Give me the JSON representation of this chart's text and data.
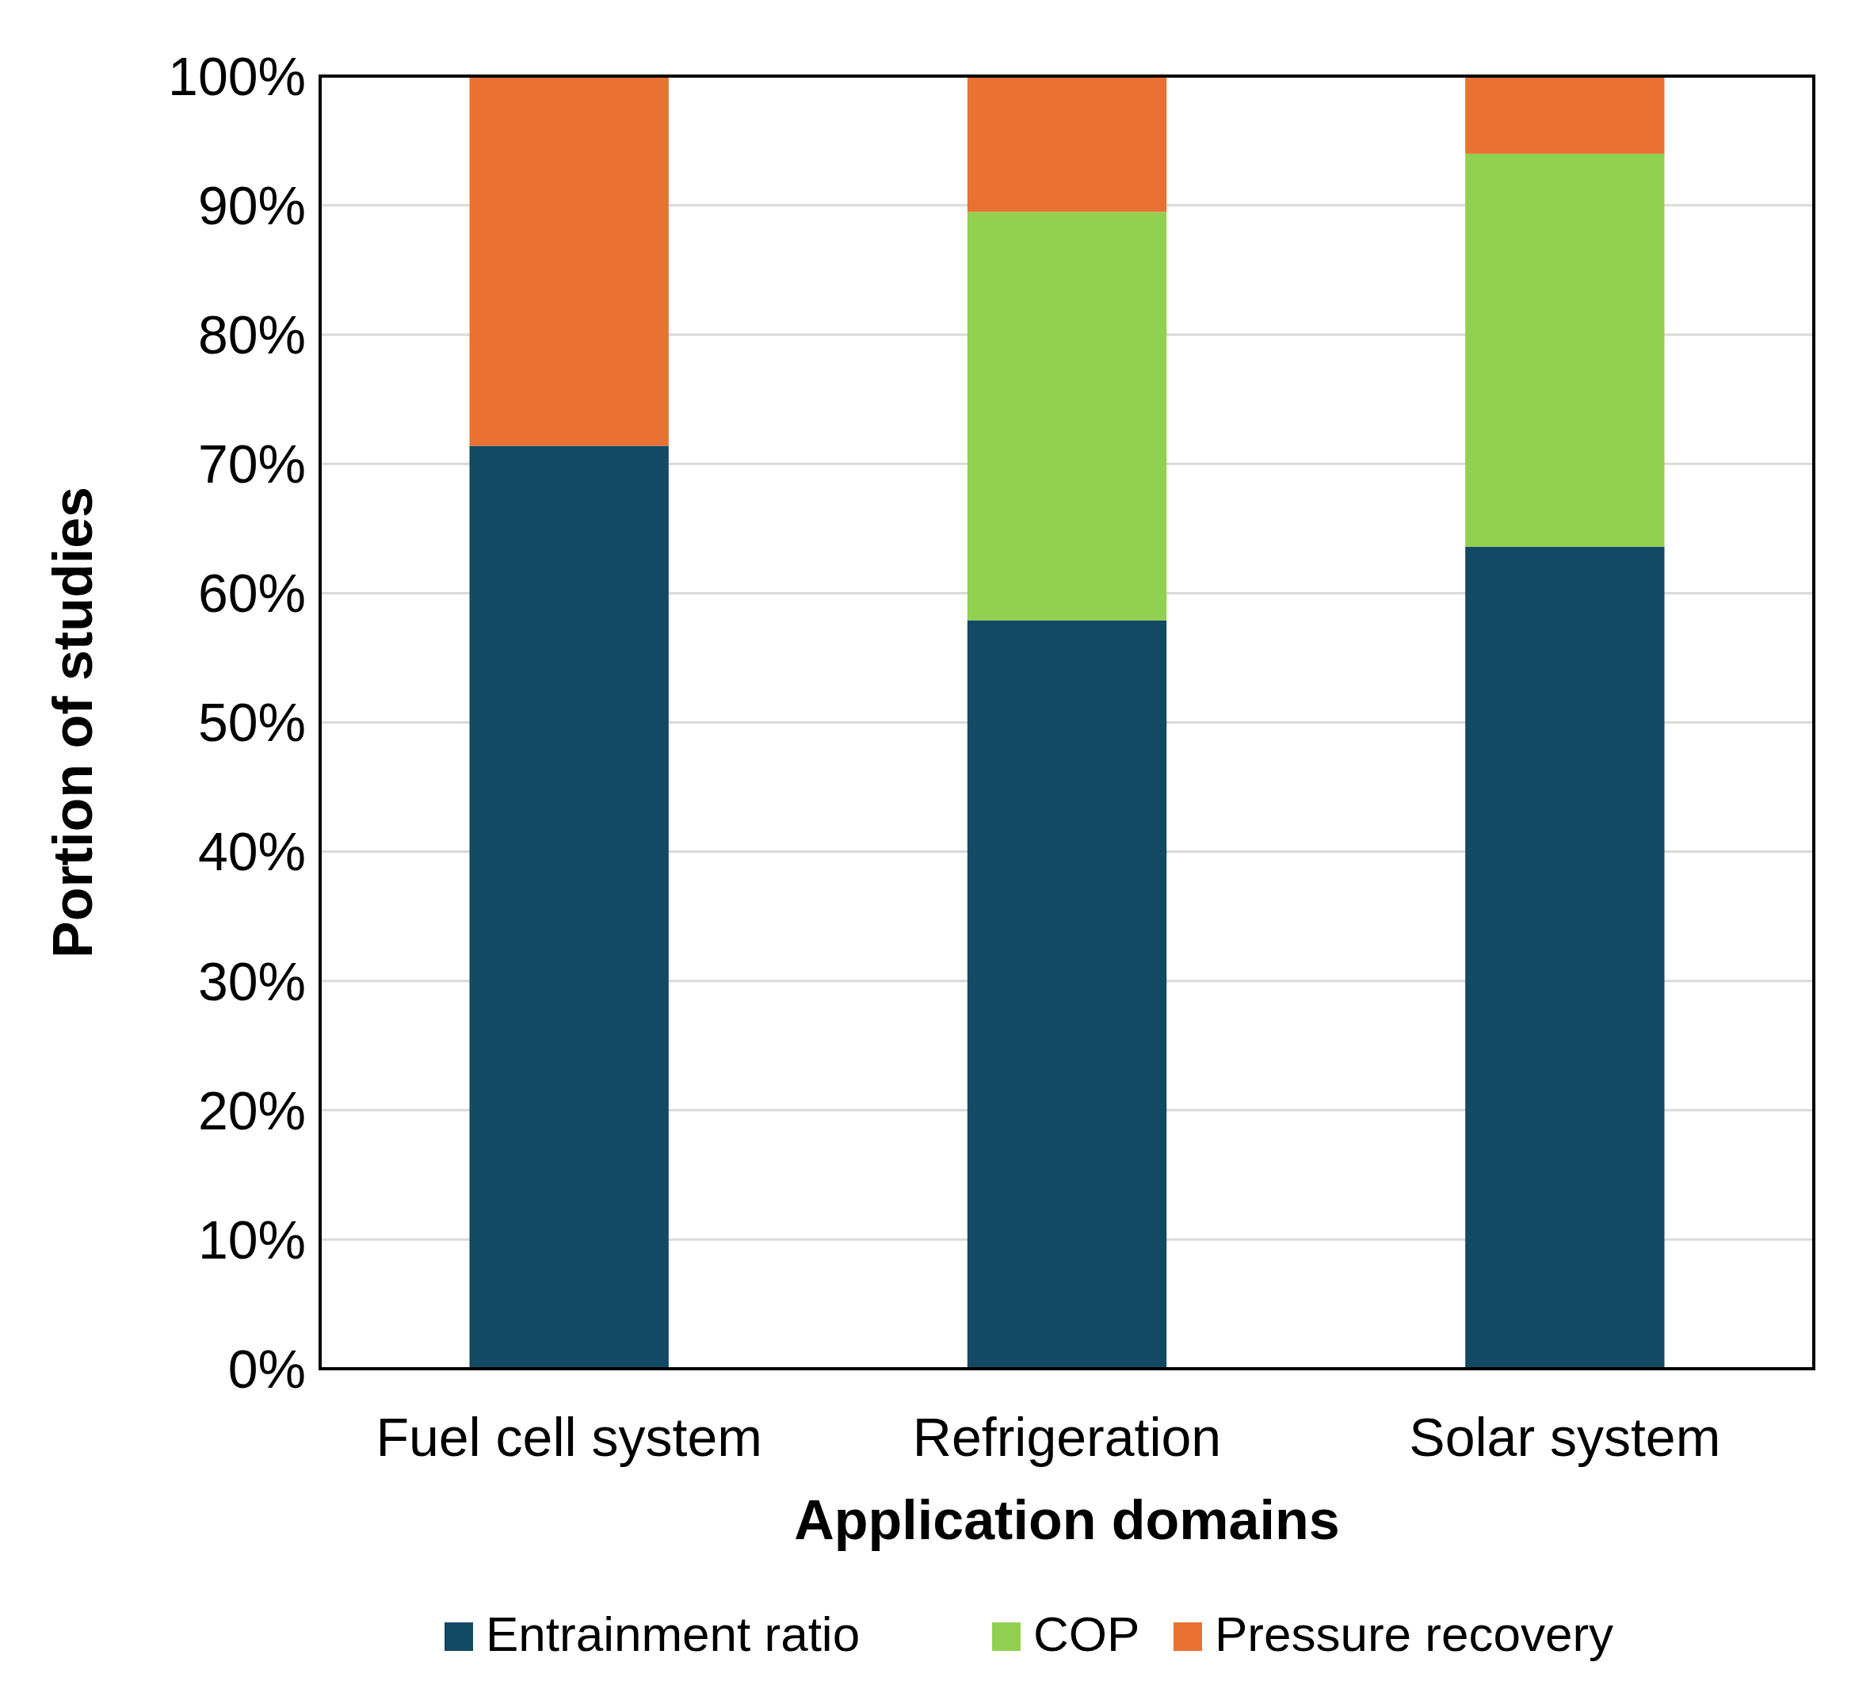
{
  "chart_data": {
    "type": "bar",
    "stacked": true,
    "xlabel": "Application domains",
    "ylabel": "Portion of studies",
    "categories": [
      "Fuel cell system",
      "Refrigeration",
      "Solar system"
    ],
    "series": [
      {
        "name": "Entrainment ratio",
        "color": "#124963",
        "values": [
          71.4,
          57.9,
          63.6
        ]
      },
      {
        "name": "COP",
        "color": "#92d050",
        "values": [
          0,
          31.6,
          30.4
        ]
      },
      {
        "name": "Pressure recovery",
        "color": "#e97132",
        "values": [
          28.6,
          10.5,
          6.0
        ]
      }
    ],
    "ylim": [
      0,
      100
    ],
    "yticks": [
      {
        "value": 0,
        "label": "0%"
      },
      {
        "value": 10,
        "label": "10%"
      },
      {
        "value": 20,
        "label": "20%"
      },
      {
        "value": 30,
        "label": "30%"
      },
      {
        "value": 40,
        "label": "40%"
      },
      {
        "value": 50,
        "label": "50%"
      },
      {
        "value": 60,
        "label": "60%"
      },
      {
        "value": 70,
        "label": "70%"
      },
      {
        "value": 80,
        "label": "80%"
      },
      {
        "value": 90,
        "label": "90%"
      },
      {
        "value": 100,
        "label": "100%"
      }
    ],
    "grid": "y",
    "legend": "bottom"
  }
}
